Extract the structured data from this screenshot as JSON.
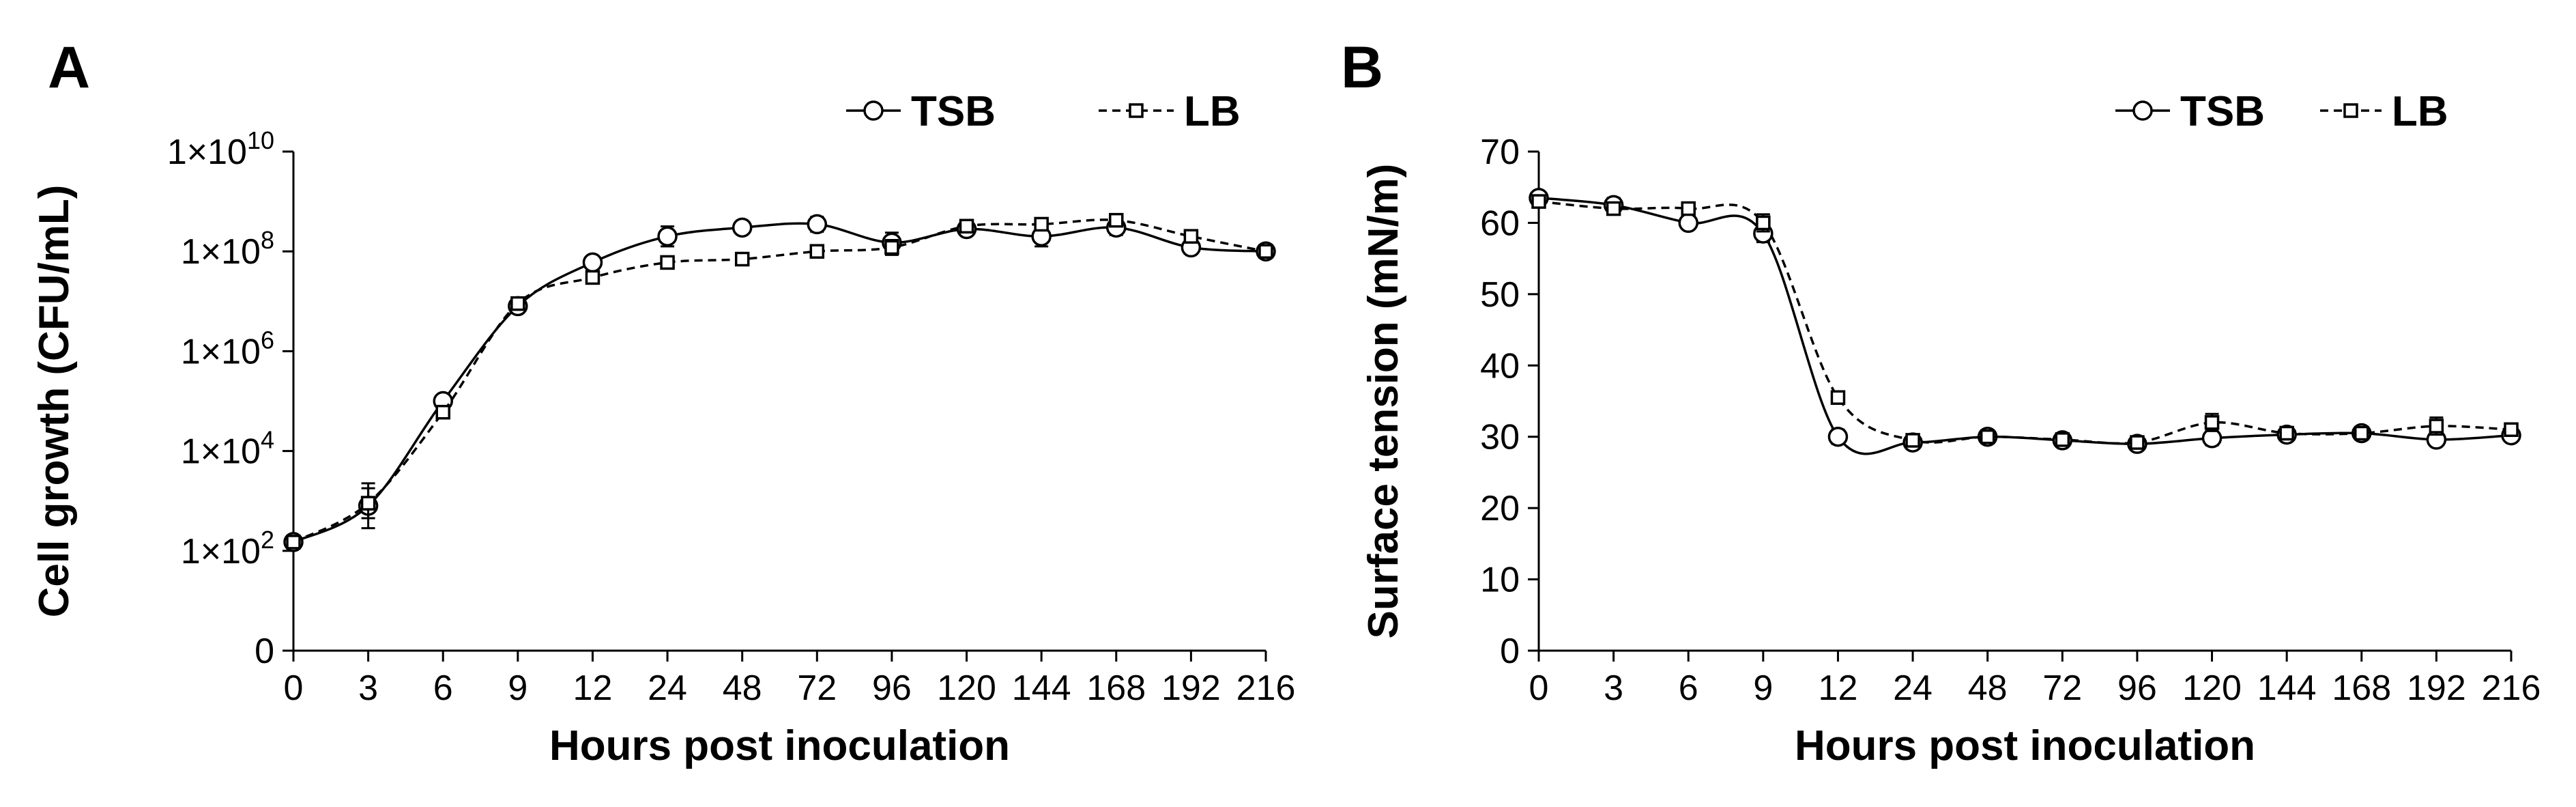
{
  "chart_data": [
    {
      "panel": "A",
      "type": "line",
      "xlabel": "Hours post inoculation",
      "ylabel": "Cell growth (CFU/mL)",
      "categories": [
        "0",
        "3",
        "6",
        "9",
        "12",
        "24",
        "48",
        "72",
        "96",
        "120",
        "144",
        "168",
        "192",
        "216"
      ],
      "yscale": "log",
      "ytick_labels": [
        "0",
        "1×10^2",
        "1×10^4",
        "1×10^6",
        "1×10^8",
        "1×10^10"
      ],
      "ylim": [
        1,
        10000000000
      ],
      "legend_position": "top-right",
      "series": [
        {
          "name": "TSB",
          "marker": "circle",
          "linestyle": "solid",
          "values": [
            150,
            800,
            100000,
            8000000,
            60000000,
            200000000,
            300000000,
            350000000,
            150000000,
            280000000,
            200000000,
            300000000,
            120000000,
            100000000
          ],
          "error": [
            0.1,
            0.45,
            0.12,
            0.05,
            0.12,
            0.2,
            0.1,
            0.15,
            0.2,
            0.1,
            0.2,
            0.15,
            0.1,
            0.05
          ]
        },
        {
          "name": "LB",
          "marker": "square",
          "linestyle": "dashed",
          "values": [
            150,
            900,
            60000,
            9000000,
            30000000,
            60000000,
            70000000,
            100000000,
            120000000,
            320000000,
            350000000,
            420000000,
            200000000,
            100000000
          ],
          "error": [
            0.08,
            0.3,
            0.1,
            0.05,
            0.1,
            0.05,
            0.05,
            0.05,
            0.15,
            0.1,
            0.1,
            0.1,
            0.08,
            0.05
          ]
        }
      ]
    },
    {
      "panel": "B",
      "type": "line",
      "xlabel": "Hours post inoculation",
      "ylabel": "Surface tension (mN/m)",
      "categories": [
        "0",
        "3",
        "6",
        "9",
        "12",
        "24",
        "48",
        "72",
        "96",
        "120",
        "144",
        "168",
        "192",
        "216"
      ],
      "yscale": "linear",
      "ylim": [
        0,
        70
      ],
      "yticks": [
        0,
        10,
        20,
        30,
        40,
        50,
        60,
        70
      ],
      "legend_position": "top-right",
      "series": [
        {
          "name": "TSB",
          "marker": "circle",
          "linestyle": "solid",
          "values": [
            63.5,
            62.5,
            60.0,
            58.5,
            30.0,
            29.2,
            30.0,
            29.5,
            29.0,
            29.8,
            30.3,
            30.5,
            29.6,
            30.2
          ],
          "error": [
            0.6,
            1.0,
            0.8,
            1.2,
            1.0,
            0.6,
            0.6,
            0.5,
            0.5,
            1.0,
            0.6,
            0.6,
            0.6,
            0.7
          ]
        },
        {
          "name": "LB",
          "marker": "square",
          "linestyle": "dashed",
          "values": [
            63.0,
            62.0,
            62.0,
            60.0,
            35.5,
            29.5,
            30.0,
            29.6,
            29.2,
            32.0,
            30.5,
            30.5,
            31.5,
            31.0
          ],
          "error": [
            0.6,
            0.8,
            0.6,
            1.2,
            0.8,
            0.6,
            0.6,
            0.5,
            0.5,
            1.2,
            0.6,
            0.6,
            1.2,
            0.8
          ]
        }
      ]
    }
  ]
}
